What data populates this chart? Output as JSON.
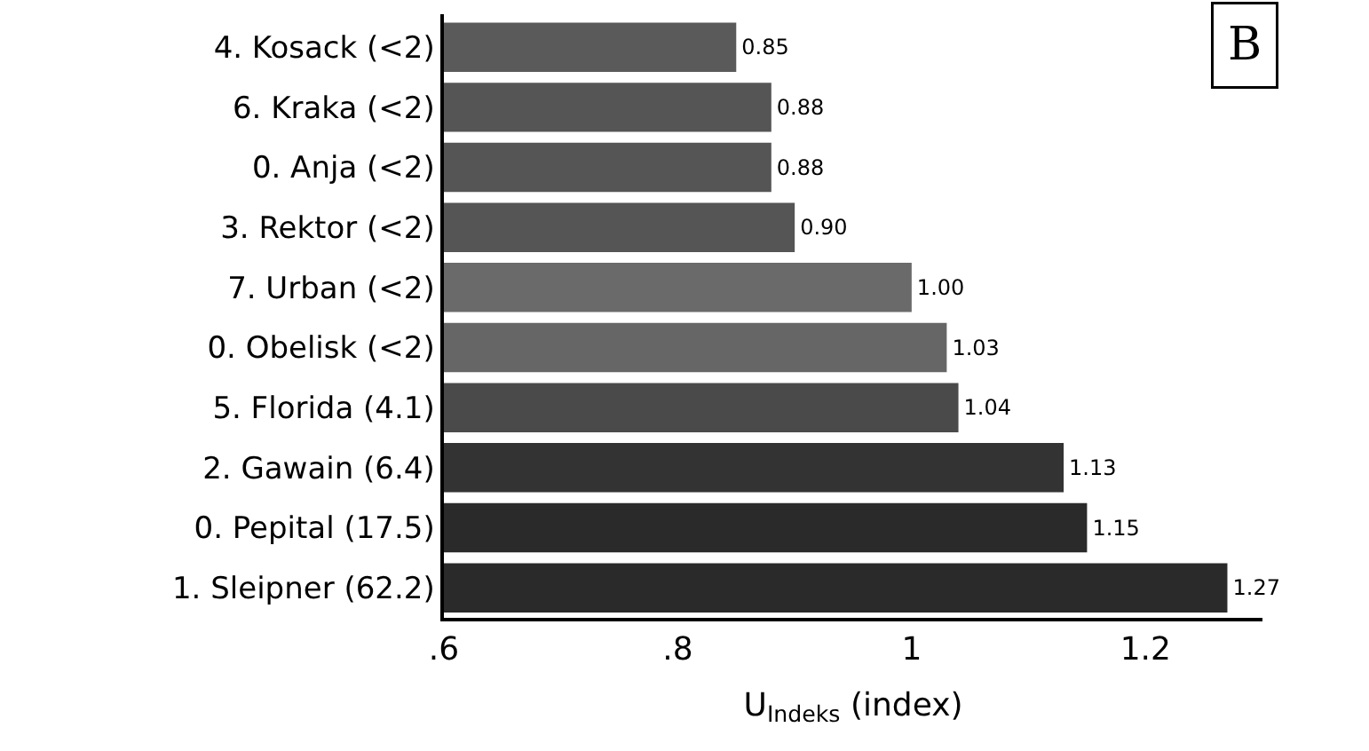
{
  "chart_data": {
    "type": "bar",
    "orientation": "horizontal",
    "categories": [
      "4. Kosack (<2)",
      "6. Kraka (<2)",
      "0. Anja (<2)",
      "3. Rektor (<2)",
      "7. Urban (<2)",
      "0. Obelisk (<2)",
      "5. Florida (4.1)",
      "2. Gawain (6.4)",
      "0. Pepital (17.5)",
      "1. Sleipner (62.2)"
    ],
    "values": [
      0.85,
      0.88,
      0.88,
      0.9,
      1.0,
      1.03,
      1.04,
      1.13,
      1.15,
      1.27
    ],
    "value_labels": [
      "0.85",
      "0.88",
      "0.88",
      "0.90",
      "1.00",
      "1.03",
      "1.04",
      "1.13",
      "1.15",
      "1.27"
    ],
    "colors": [
      "#5a5a5a",
      "#555555",
      "#555555",
      "#555555",
      "#6a6a6a",
      "#666666",
      "#4a4a4a",
      "#333333",
      "#2a2a2a",
      "#2a2a2a"
    ],
    "xlim": [
      0.6,
      1.3
    ],
    "xticks": [
      {
        "value": 0.6,
        "label": ".6"
      },
      {
        "value": 0.8,
        "label": ".8"
      },
      1,
      1.2
    ],
    "xlabel": "U$_{Indeks}$ (index)",
    "annotations": [
      "B"
    ],
    "legend": false
  }
}
